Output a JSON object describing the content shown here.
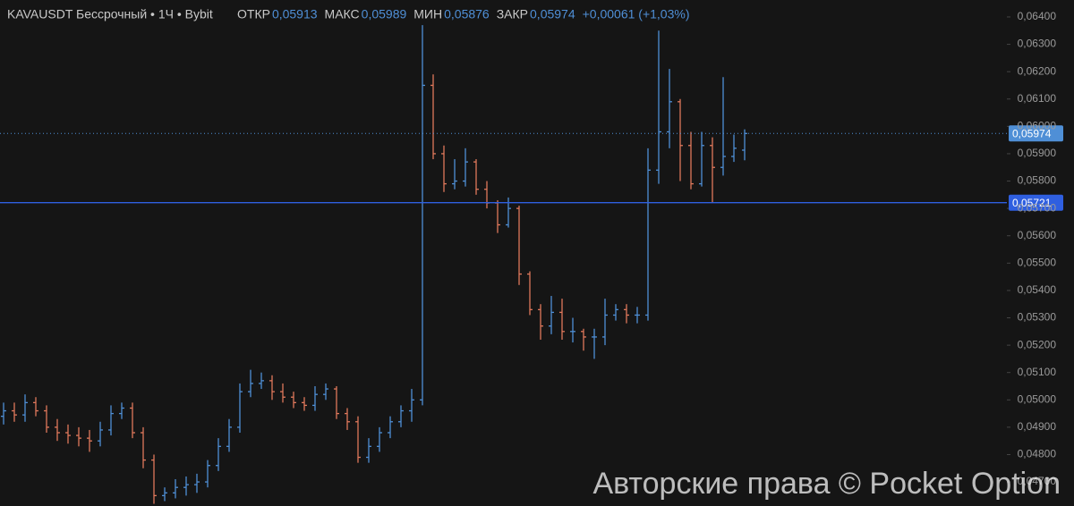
{
  "chart_data": {
    "type": "ohlc",
    "title": "KAVAUSDT Бессрочный • 1Ч • Bybit",
    "legend": [
      {
        "label": "ОТКР",
        "value": "0,05913"
      },
      {
        "label": "МАКС",
        "value": "0,05989"
      },
      {
        "label": "МИН",
        "value": "0,05876"
      },
      {
        "label": "ЗАКР",
        "value": "0,05974"
      },
      {
        "label": "+0,00061 (+1,03%)"
      }
    ],
    "watermark": "Авторские права © Pocket Option",
    "up_color": "#4f8fd6",
    "down_color": "#e0785c",
    "ylim": [
      0.04612,
      0.06462
    ],
    "yticks": [
      {
        "value": 0.064,
        "label": "0,06400"
      },
      {
        "value": 0.063,
        "label": "0,06300"
      },
      {
        "value": 0.062,
        "label": "0,06200"
      },
      {
        "value": 0.061,
        "label": "0,06100"
      },
      {
        "value": 0.06,
        "label": "0,06000"
      },
      {
        "value": 0.059,
        "label": "0,05900"
      },
      {
        "value": 0.058,
        "label": "0,05800"
      },
      {
        "value": 0.057,
        "label": "0,05700"
      },
      {
        "value": 0.056,
        "label": "0,05600"
      },
      {
        "value": 0.055,
        "label": "0,05500"
      },
      {
        "value": 0.054,
        "label": "0,05400"
      },
      {
        "value": 0.053,
        "label": "0,05300"
      },
      {
        "value": 0.052,
        "label": "0,05200"
      },
      {
        "value": 0.051,
        "label": "0,05100"
      },
      {
        "value": 0.05,
        "label": "0,05000"
      },
      {
        "value": 0.049,
        "label": "0,04900"
      },
      {
        "value": 0.048,
        "label": "0,04800"
      },
      {
        "value": 0.047,
        "label": "0,04700"
      }
    ],
    "price_lines": [
      {
        "value": 0.05974,
        "label": "0,05974",
        "style": "dotted",
        "color": "#4f8fd6"
      },
      {
        "value": 0.05721,
        "label": "0,05721",
        "style": "solid",
        "color": "#2f5fe0"
      }
    ],
    "open": [
      0.0494,
      0.0496,
      0.04945,
      0.0499,
      0.0496,
      0.049,
      0.0488,
      0.0487,
      0.0486,
      0.0485,
      0.0489,
      0.0495,
      0.0497,
      0.0488,
      0.0478,
      0.0465,
      0.0466,
      0.0468,
      0.0469,
      0.047,
      0.0476,
      0.0483,
      0.049,
      0.0503,
      0.0506,
      0.0507,
      0.0503,
      0.0501,
      0.0499,
      0.0498,
      0.0502,
      0.0504,
      0.0495,
      0.0492,
      0.0479,
      0.0483,
      0.0488,
      0.0492,
      0.0496,
      0.05,
      0.0615,
      0.059,
      0.0579,
      0.058,
      0.0587,
      0.0577,
      0.0572,
      0.0564,
      0.057,
      0.0546,
      0.0533,
      0.0527,
      0.0532,
      0.0525,
      0.0525,
      0.0523,
      0.0523,
      0.0531,
      0.0533,
      0.0531,
      0.0531,
      0.0584,
      0.0598,
      0.0609,
      0.0593,
      0.0579,
      0.0593,
      0.0585,
      0.0589,
      0.05913
    ],
    "high": [
      0.0499,
      0.0499,
      0.0502,
      0.0501,
      0.0498,
      0.0493,
      0.0491,
      0.049,
      0.0489,
      0.0492,
      0.0498,
      0.0499,
      0.0499,
      0.049,
      0.048,
      0.0468,
      0.0471,
      0.0472,
      0.0473,
      0.0478,
      0.0486,
      0.0493,
      0.0506,
      0.0511,
      0.051,
      0.0509,
      0.0506,
      0.0503,
      0.0501,
      0.0505,
      0.0506,
      0.0505,
      0.0497,
      0.0494,
      0.0486,
      0.049,
      0.0494,
      0.0498,
      0.0504,
      0.0637,
      0.0619,
      0.0593,
      0.0588,
      0.0592,
      0.0588,
      0.058,
      0.0573,
      0.0574,
      0.0571,
      0.0547,
      0.0535,
      0.0538,
      0.0537,
      0.053,
      0.0526,
      0.0526,
      0.0537,
      0.0535,
      0.0535,
      0.0534,
      0.0592,
      0.0635,
      0.0621,
      0.061,
      0.0598,
      0.0598,
      0.0596,
      0.0618,
      0.0597,
      0.05989
    ],
    "low": [
      0.0491,
      0.0492,
      0.0492,
      0.0494,
      0.0488,
      0.0485,
      0.0484,
      0.0483,
      0.0481,
      0.0483,
      0.0487,
      0.0493,
      0.0486,
      0.0475,
      0.0462,
      0.0463,
      0.0464,
      0.0465,
      0.0466,
      0.0468,
      0.0474,
      0.0481,
      0.0488,
      0.0501,
      0.0504,
      0.05,
      0.0499,
      0.0497,
      0.0496,
      0.0496,
      0.05,
      0.0493,
      0.0489,
      0.0477,
      0.0477,
      0.0481,
      0.0486,
      0.049,
      0.0492,
      0.0498,
      0.0588,
      0.0576,
      0.0577,
      0.0578,
      0.0575,
      0.057,
      0.0561,
      0.0563,
      0.0542,
      0.0531,
      0.0522,
      0.0524,
      0.0522,
      0.0521,
      0.0518,
      0.0515,
      0.052,
      0.0529,
      0.0528,
      0.0528,
      0.0529,
      0.0579,
      0.0592,
      0.058,
      0.0577,
      0.0578,
      0.0572,
      0.0582,
      0.0587,
      0.05876
    ],
    "close": [
      0.0496,
      0.04945,
      0.0499,
      0.0496,
      0.049,
      0.0488,
      0.0487,
      0.0486,
      0.0485,
      0.0489,
      0.0495,
      0.0497,
      0.0488,
      0.0478,
      0.0465,
      0.0466,
      0.0468,
      0.0469,
      0.047,
      0.0476,
      0.0483,
      0.049,
      0.0503,
      0.0506,
      0.0507,
      0.0503,
      0.0501,
      0.0499,
      0.0498,
      0.0502,
      0.0504,
      0.0495,
      0.0492,
      0.0479,
      0.0483,
      0.0488,
      0.0492,
      0.0496,
      0.05,
      0.0615,
      0.059,
      0.0579,
      0.058,
      0.0587,
      0.0577,
      0.0572,
      0.0564,
      0.057,
      0.0546,
      0.0533,
      0.0527,
      0.0532,
      0.0525,
      0.0525,
      0.0523,
      0.0523,
      0.0531,
      0.0533,
      0.0531,
      0.0531,
      0.0584,
      0.0598,
      0.0609,
      0.0593,
      0.0579,
      0.0593,
      0.0585,
      0.0589,
      0.0592,
      0.05974
    ]
  }
}
